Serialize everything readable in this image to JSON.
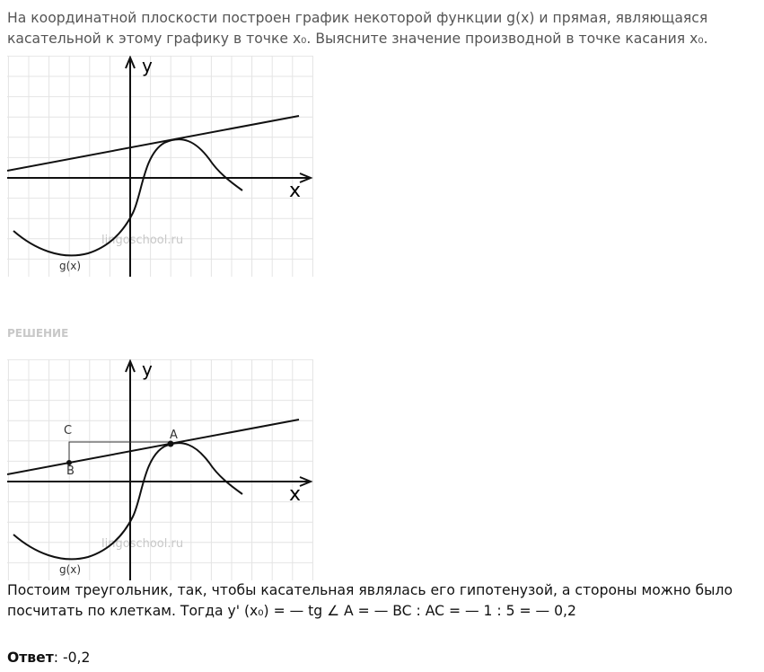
{
  "problem": "На координатной плоскости построен график некоторой функции g(x) и прямая, являющаяся касательной к этому графику в точке x₀. Выясните значение производной в точке касания x₀.",
  "diagram": {
    "y_label": "y",
    "x_label": "x",
    "function_label": "g(x)",
    "watermark": "lingoschool.ru"
  },
  "solution_heading": "РЕШЕНИЕ",
  "solution_diagram": {
    "y_label": "y",
    "x_label": "x",
    "function_label": "g(x)",
    "watermark": "lingoschool.ru",
    "point_c": "C",
    "point_a": "A",
    "point_b": "B"
  },
  "solution": "Постоим треугольник, так, чтобы касательная являлась его гипотенузой, а стороны можно было посчитать по клеткам. Тогда y' (x₀) = — tg ∠ A = — BC : AC = — 1 : 5 = — 0,2",
  "answer": {
    "label": "Ответ",
    "value": ": -0,2"
  }
}
